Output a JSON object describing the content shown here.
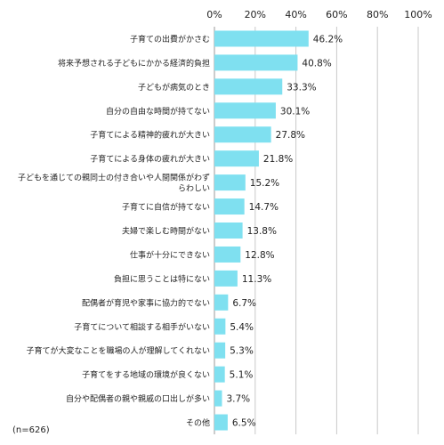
{
  "chart_data": {
    "type": "bar",
    "orientation": "horizontal",
    "title": "",
    "xlabel": "",
    "ylabel": "",
    "xlim": [
      0,
      100
    ],
    "x_ticks": [
      "0%",
      "20%",
      "40%",
      "60%",
      "80%",
      "100%"
    ],
    "grid": true,
    "bar_color": "#7fe0f0",
    "categories": [
      "子育ての出費がかさむ",
      "将来予想される子どもにかかる経済的負担",
      "子どもが病気のとき",
      "自分の自由な時間が持てない",
      "子育てによる精神的疲れが大きい",
      "子育てによる身体の疲れが大きい",
      "子どもを通じての親同士の付き合いや人間関係がわずらわしい",
      "子育てに自信が持てない",
      "夫婦で楽しむ時間がない",
      "仕事が十分にできない",
      "負担に思うことは特にない",
      "配偶者が育児や家事に協力的でない",
      "子育てについて相談する相手がいない",
      "子育てが大変なことを職場の人が理解してくれない",
      "子育てをする地域の環境が良くない",
      "自分や配偶者の親や親戚の口出しが多い",
      "その他"
    ],
    "values": [
      46.2,
      40.8,
      33.3,
      30.1,
      27.8,
      21.8,
      15.2,
      14.7,
      13.8,
      12.8,
      11.3,
      6.7,
      5.4,
      5.3,
      5.1,
      3.7,
      6.5
    ],
    "value_labels": [
      "46.2%",
      "40.8%",
      "33.3%",
      "30.1%",
      "27.8%",
      "21.8%",
      "15.2%",
      "14.7%",
      "13.8%",
      "12.8%",
      "11.3%",
      "6.7%",
      "5.4%",
      "5.3%",
      "5.1%",
      "3.7%",
      "6.5%"
    ]
  },
  "footnote": "(n=626)"
}
